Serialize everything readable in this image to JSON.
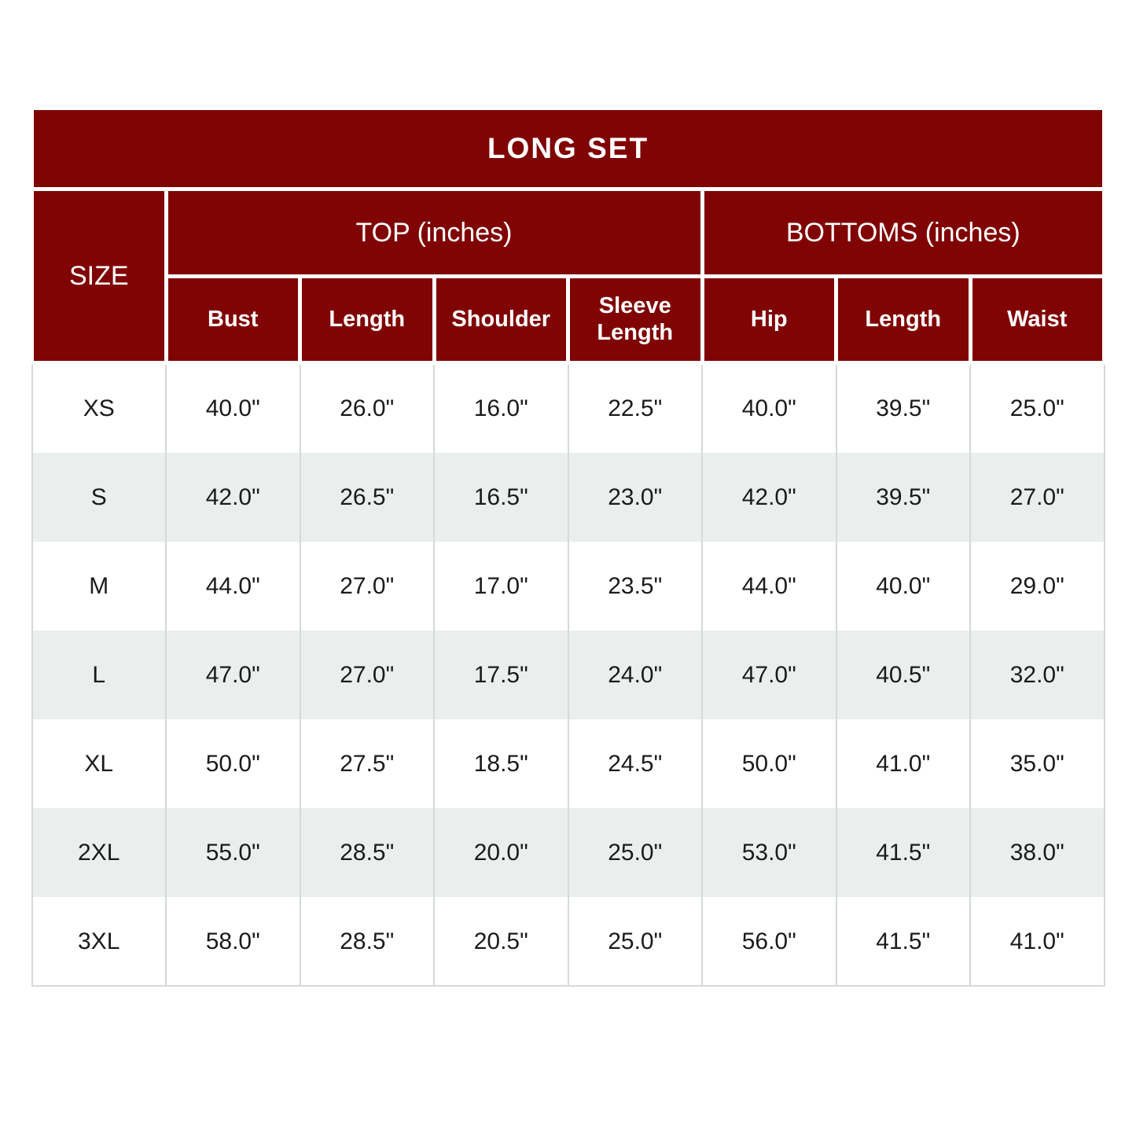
{
  "chart_data": {
    "type": "table",
    "title": "LONG SET",
    "corner_header": "SIZE",
    "column_groups": [
      {
        "label": "TOP (inches)",
        "colspan": 4
      },
      {
        "label": "BOTTOMS (inches)",
        "colspan": 3
      }
    ],
    "columns": [
      "Bust",
      "Length",
      "Shoulder",
      "Sleeve Length",
      "Hip",
      "Length",
      "Waist"
    ],
    "rows": [
      {
        "size": "XS",
        "values": [
          "40.0\"",
          "26.0\"",
          "16.0\"",
          "22.5\"",
          "40.0\"",
          "39.5\"",
          "25.0\""
        ]
      },
      {
        "size": "S",
        "values": [
          "42.0\"",
          "26.5\"",
          "16.5\"",
          "23.0\"",
          "42.0\"",
          "39.5\"",
          "27.0\""
        ]
      },
      {
        "size": "M",
        "values": [
          "44.0\"",
          "27.0\"",
          "17.0\"",
          "23.5\"",
          "44.0\"",
          "40.0\"",
          "29.0\""
        ]
      },
      {
        "size": "L",
        "values": [
          "47.0\"",
          "27.0\"",
          "17.5\"",
          "24.0\"",
          "47.0\"",
          "40.5\"",
          "32.0\""
        ]
      },
      {
        "size": "XL",
        "values": [
          "50.0\"",
          "27.5\"",
          "18.5\"",
          "24.5\"",
          "50.0\"",
          "41.0\"",
          "35.0\""
        ]
      },
      {
        "size": "2XL",
        "values": [
          "55.0\"",
          "28.5\"",
          "20.0\"",
          "25.0\"",
          "53.0\"",
          "41.5\"",
          "38.0\""
        ]
      },
      {
        "size": "3XL",
        "values": [
          "58.0\"",
          "28.5\"",
          "20.5\"",
          "25.0\"",
          "56.0\"",
          "41.5\"",
          "41.0\""
        ]
      }
    ],
    "layout_hints": {
      "header_rows": 3,
      "size_header_rowspan": 2,
      "alternating_rows": true
    }
  },
  "colors": {
    "header_bg": "#800404",
    "header_text": "#ffffff",
    "row_bg": "#ffffff",
    "row_alt_bg": "#eaefee",
    "border": "#d3dad8",
    "text": "#1b1b1b"
  }
}
